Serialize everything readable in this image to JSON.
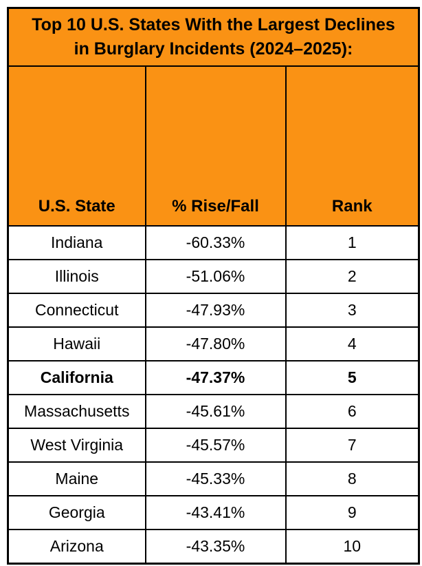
{
  "chart_data": {
    "type": "table",
    "title": "Top 10 U.S. States With the Largest Declines in Burglary Incidents (2024–2025):",
    "title_lines": [
      "Top 10 U.S. States With the Largest Declines",
      "in Burglary Incidents (2024–2025):"
    ],
    "columns": [
      "U.S. State",
      "% Rise/Fall",
      "Rank"
    ],
    "rows": [
      [
        "Indiana",
        "-60.33%",
        "1"
      ],
      [
        "Illinois",
        "-51.06%",
        "2"
      ],
      [
        "Connecticut",
        "-47.93%",
        "3"
      ],
      [
        "Hawaii",
        "-47.80%",
        "4"
      ],
      [
        "California",
        "-47.37%",
        "5"
      ],
      [
        "Massachusetts",
        "-45.61%",
        "6"
      ],
      [
        "West Virginia",
        "-45.57%",
        "7"
      ],
      [
        "Maine",
        "-45.33%",
        "8"
      ],
      [
        "Georgia",
        "-43.41%",
        "9"
      ],
      [
        "Arizona",
        "-43.35%",
        "10"
      ]
    ],
    "emphasized_row_index": 4,
    "layout_hints": {
      "header_label_alignment": "bottom",
      "cell_alignment": "center",
      "grid": "on"
    },
    "colors": {
      "header_bg": "#FA9214",
      "border": "#000000",
      "text": "#000000",
      "row_bg": "#FFFFFF"
    }
  }
}
